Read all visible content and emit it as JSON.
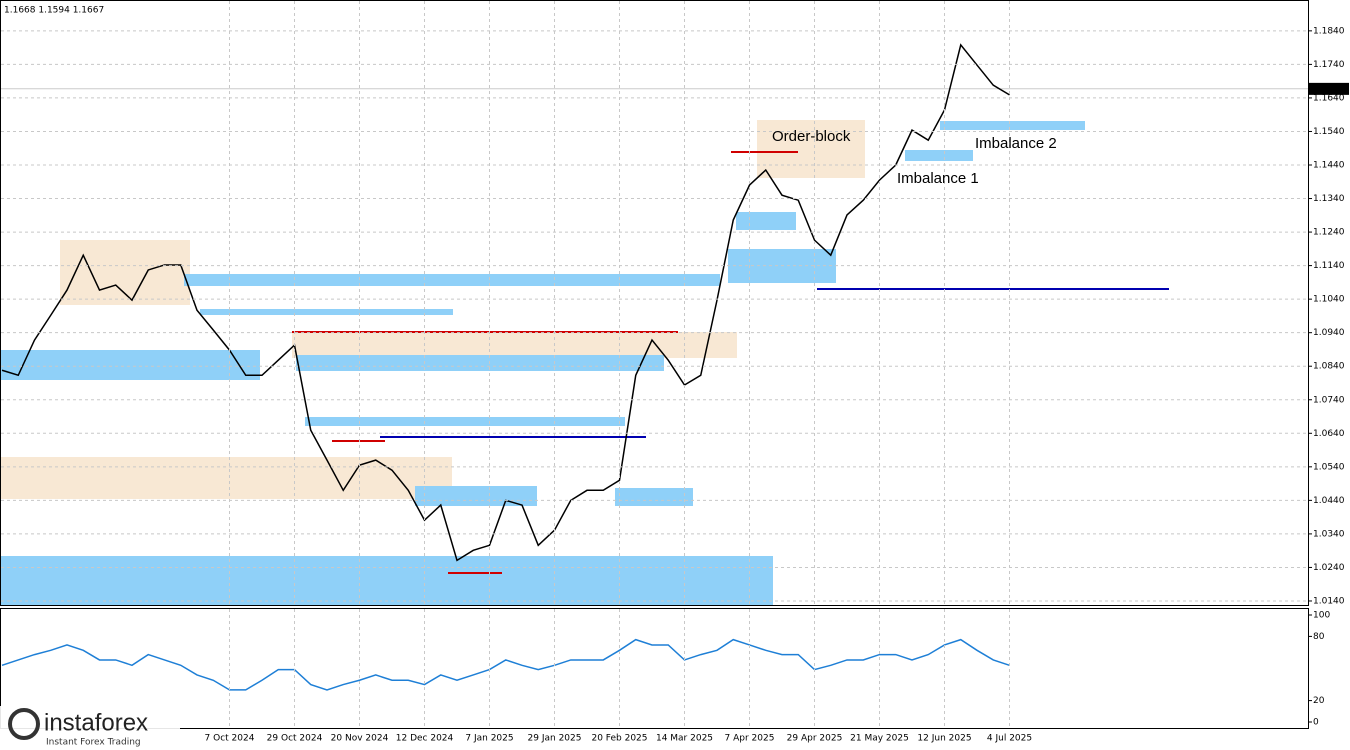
{
  "header": "1.1668 1.1594 1.1667",
  "watermark": {
    "brand": "instaforex",
    "tagline": "Instant Forex Trading"
  },
  "annotations": [
    "Order-block",
    "Imbalance 1",
    "Imbalance 2"
  ],
  "chart_data": [
    {
      "type": "line",
      "name": "EURUSD D1",
      "categories": [
        null,
        null,
        null,
        null,
        null,
        null,
        null,
        null,
        null,
        null,
        null,
        null,
        null,
        null,
        "7 Oct 2024",
        null,
        null,
        null,
        "29 Oct 2024",
        null,
        null,
        null,
        "20 Nov 2024",
        null,
        null,
        null,
        "12 Dec 2024",
        null,
        null,
        null,
        "7 Jan 2025",
        null,
        null,
        null,
        "29 Jan 2025",
        null,
        null,
        null,
        "20 Feb 2025",
        null,
        null,
        null,
        "14 Mar 2025",
        null,
        null,
        null,
        "7 Apr 2025",
        null,
        null,
        null,
        "29 Apr 2025",
        null,
        null,
        null,
        "21 May 2025",
        null,
        null,
        null,
        "12 Jun 2025",
        null,
        null,
        null,
        "4 Jul 2025"
      ],
      "series": [
        {
          "color": "#000000",
          "values": [
            1.0828,
            1.0813,
            1.0918,
            1.0992,
            1.1067,
            1.1171,
            1.1067,
            1.1082,
            1.1037,
            1.1127,
            1.1142,
            1.1142,
            1.1007,
            1.0948,
            1.0888,
            1.0813,
            1.0813,
            1.0858,
            1.0903,
            1.0649,
            1.056,
            1.047,
            1.0545,
            1.056,
            1.053,
            1.047,
            1.0381,
            1.0426,
            1.0261,
            1.0291,
            1.0306,
            1.044,
            1.0426,
            1.0306,
            1.0351,
            1.044,
            1.047,
            1.047,
            1.05,
            1.0813,
            1.0918,
            1.0858,
            1.0784,
            1.0813,
            1.1037,
            1.1276,
            1.138,
            1.1425,
            1.135,
            1.1335,
            1.1216,
            1.1171,
            1.1291,
            1.1335,
            1.1395,
            1.144,
            1.1544,
            1.1514,
            1.1604,
            1.1798,
            1.1738,
            1.1678,
            1.1649
          ]
        }
      ],
      "last_price": 1.1667,
      "ylim": [
        1.0128,
        1.1932
      ],
      "yticks": [
        {
          "value": 1.014,
          "label": "1.0140"
        },
        {
          "value": 1.024,
          "label": "1.0240"
        },
        {
          "value": 1.034,
          "label": "1.0340"
        },
        {
          "value": 1.044,
          "label": "1.0440"
        },
        {
          "value": 1.054,
          "label": "1.0540"
        },
        {
          "value": 1.064,
          "label": "1.0640"
        },
        {
          "value": 1.074,
          "label": "1.0740"
        },
        {
          "value": 1.084,
          "label": "1.0840"
        },
        {
          "value": 1.094,
          "label": "1.0940"
        },
        {
          "value": 1.104,
          "label": "1.1040"
        },
        {
          "value": 1.114,
          "label": "1.1140"
        },
        {
          "value": 1.124,
          "label": "1.1240"
        },
        {
          "value": 1.134,
          "label": "1.1340"
        },
        {
          "value": 1.144,
          "label": "1.1440"
        },
        {
          "value": 1.154,
          "label": "1.1540"
        },
        {
          "value": 1.164,
          "label": "1.1640"
        },
        {
          "value": 1.174,
          "label": "1.1740"
        },
        {
          "value": 1.184,
          "label": "1.1840"
        }
      ],
      "grid": true
    },
    {
      "type": "line",
      "name": "oscillator",
      "series": [
        {
          "color": "#1e7fd6",
          "values": [
            53,
            58,
            63,
            67,
            72,
            67,
            58,
            58,
            53,
            63,
            58,
            53,
            44,
            39,
            30,
            30,
            39,
            49,
            49,
            35,
            30,
            35,
            39,
            44,
            39,
            39,
            35,
            44,
            39,
            44,
            49,
            58,
            53,
            49,
            53,
            58,
            58,
            58,
            67,
            77,
            72,
            72,
            58,
            63,
            67,
            77,
            72,
            67,
            63,
            63,
            49,
            53,
            58,
            58,
            63,
            63,
            58,
            63,
            72,
            77,
            67,
            58,
            53
          ]
        }
      ],
      "ylim": [
        0,
        100
      ],
      "yticks": [
        0,
        20,
        80,
        100
      ],
      "grid": false
    }
  ]
}
